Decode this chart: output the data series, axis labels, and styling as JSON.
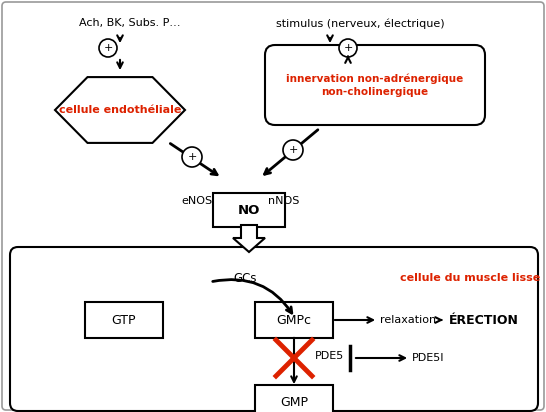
{
  "fig_width": 5.46,
  "fig_height": 4.12,
  "dpi": 100,
  "bg_color": "#ffffff",
  "border_color": "#aaaaaa",
  "black": "#000000",
  "red": "#dd2200",
  "title_text": "Ach, BK, Subs. P…",
  "stimulus_text": "stimulus (nerveux, électrique)",
  "endo_text": "cellule endothéliale",
  "innervation_text": "innervation non-adrénergique\nnon-cholinergique",
  "muscle_text": "cellule du muscle lisse",
  "erection_text": "ÉRECTION"
}
